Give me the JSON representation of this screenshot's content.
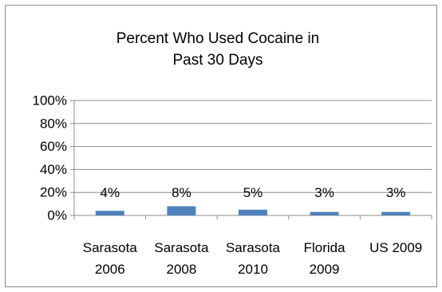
{
  "chart_data": {
    "type": "bar",
    "title_lines": [
      "Percent Who Used Cocaine in",
      "Past 30 Days"
    ],
    "categories": [
      [
        "Sarasota",
        "2006"
      ],
      [
        "Sarasota",
        "2008"
      ],
      [
        "Sarasota",
        "2010"
      ],
      [
        "Florida",
        "2009"
      ],
      [
        "US 2009"
      ]
    ],
    "values": [
      4,
      8,
      5,
      3,
      3
    ],
    "data_labels": [
      "4%",
      "8%",
      "5%",
      "3%",
      "3%"
    ],
    "y_ticks": [
      0,
      20,
      40,
      60,
      80,
      100
    ],
    "y_tick_labels": [
      "0%",
      "20%",
      "40%",
      "60%",
      "80%",
      "100%"
    ],
    "ylim": [
      0,
      100
    ],
    "grid": true,
    "legend": "none",
    "bar_color": "#4f81bd"
  }
}
